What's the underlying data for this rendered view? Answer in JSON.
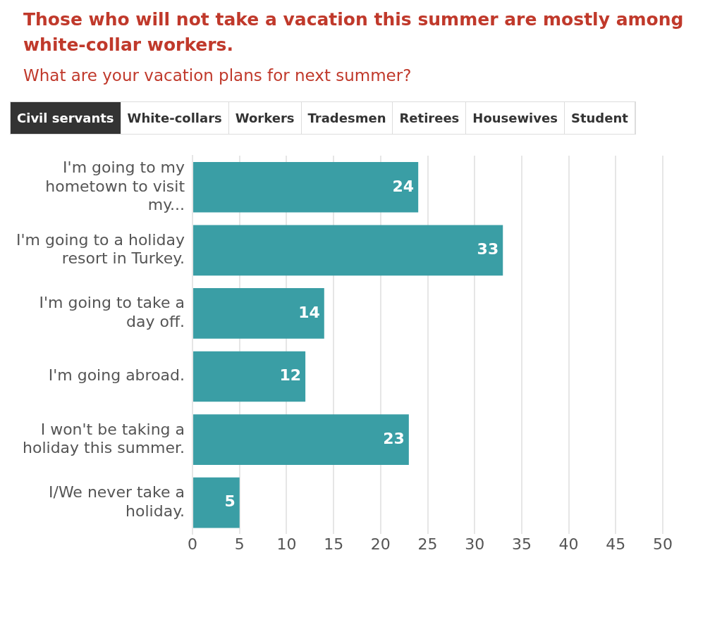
{
  "chart_data": {
    "type": "bar",
    "orientation": "horizontal",
    "title": "Those who will not take a vacation this summer are mostly among white-collar workers.",
    "subtitle": "What are your vacation plans for next summer?",
    "annotations": [
      "Civil servants",
      "White-collars",
      "Workers",
      "Tradesmen",
      "Retirees",
      "Housewives",
      "Student"
    ],
    "categories": [
      "I'm going to my hometown to visit my...",
      "I'm going to a holiday resort in Turkey.",
      "I'm going to take a day off.",
      "I'm going abroad.",
      "I won't be taking a holiday this summer.",
      "I/We never take a holiday."
    ],
    "values": [
      24,
      33,
      14,
      12,
      23,
      5
    ],
    "color": "#3a9ea5",
    "data_labels": true,
    "xlim": [
      0,
      50
    ],
    "xticks": [
      0,
      5,
      10,
      15,
      20,
      25,
      30,
      35,
      40,
      45,
      50
    ],
    "grid": "x",
    "legend": false
  }
}
